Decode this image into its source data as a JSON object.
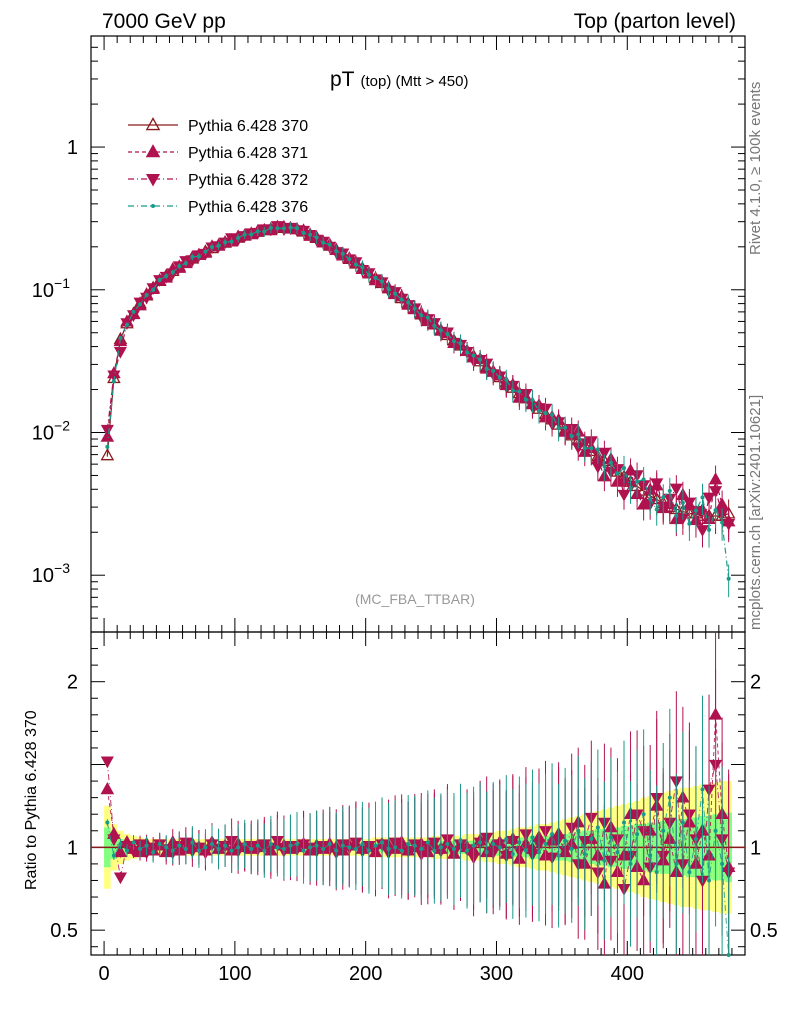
{
  "header": {
    "left": "7000 GeV pp",
    "right": "Top (parton level)"
  },
  "side_labels": {
    "upper": "Rivet 4.1.0, ≥ 100k events",
    "lower": "mcplots.cern.ch [arXiv:2401.10621]"
  },
  "title": {
    "main": "pT",
    "sub": "(top) (Mtt > 450)"
  },
  "watermark": "(MC_FBA_TTBAR)",
  "ratio_ylabel": "Ratio to Pythia 6.428 370",
  "chart_data": {
    "type": "scatter",
    "top_panel": {
      "yscale": "log",
      "ylim": [
        0.0004,
        6
      ],
      "y_ticks": [
        {
          "value": 0.001,
          "base": "10",
          "exp": "−3"
        },
        {
          "value": 0.01,
          "base": "10",
          "exp": "−2"
        },
        {
          "value": 0.1,
          "base": "10",
          "exp": "−1"
        },
        {
          "value": 1,
          "base": "1",
          "exp": ""
        }
      ]
    },
    "ratio_panel": {
      "ylim": [
        0.35,
        2.3
      ],
      "y_ticks": [
        {
          "value": 0.5,
          "label": "0.5"
        },
        {
          "value": 1,
          "label": "1"
        },
        {
          "value": 2,
          "label": "2"
        }
      ]
    },
    "xlim": [
      -10,
      490
    ],
    "x_ticks": [
      {
        "value": 0,
        "label": "0"
      },
      {
        "value": 100,
        "label": "100"
      },
      {
        "value": 200,
        "label": "200"
      },
      {
        "value": 300,
        "label": "300"
      },
      {
        "value": 400,
        "label": "400"
      }
    ],
    "bin_width": 5,
    "x": [
      2.5,
      7.5,
      12.5,
      17.5,
      22.5,
      27.5,
      32.5,
      37.5,
      42.5,
      47.5,
      52.5,
      57.5,
      62.5,
      67.5,
      72.5,
      77.5,
      82.5,
      87.5,
      92.5,
      97.5,
      102.5,
      107.5,
      112.5,
      117.5,
      122.5,
      127.5,
      132.5,
      137.5,
      142.5,
      147.5,
      152.5,
      157.5,
      162.5,
      167.5,
      172.5,
      177.5,
      182.5,
      187.5,
      192.5,
      197.5,
      202.5,
      207.5,
      212.5,
      217.5,
      222.5,
      227.5,
      232.5,
      237.5,
      242.5,
      247.5,
      252.5,
      257.5,
      262.5,
      267.5,
      272.5,
      277.5,
      282.5,
      287.5,
      292.5,
      297.5,
      302.5,
      307.5,
      312.5,
      317.5,
      322.5,
      327.5,
      332.5,
      337.5,
      342.5,
      347.5,
      352.5,
      357.5,
      362.5,
      367.5,
      372.5,
      377.5,
      382.5,
      387.5,
      392.5,
      397.5,
      402.5,
      407.5,
      412.5,
      417.5,
      422.5,
      427.5,
      432.5,
      437.5,
      442.5,
      447.5,
      452.5,
      457.5,
      462.5,
      467.5,
      472.5,
      477.5
    ],
    "reference_values": [
      0.0069,
      0.024,
      0.045,
      0.058,
      0.068,
      0.08,
      0.091,
      0.103,
      0.115,
      0.125,
      0.135,
      0.145,
      0.155,
      0.165,
      0.175,
      0.185,
      0.195,
      0.205,
      0.213,
      0.222,
      0.231,
      0.239,
      0.247,
      0.254,
      0.261,
      0.266,
      0.27,
      0.272,
      0.27,
      0.265,
      0.255,
      0.243,
      0.23,
      0.216,
      0.203,
      0.19,
      0.177,
      0.164,
      0.152,
      0.141,
      0.13,
      0.12,
      0.111,
      0.102,
      0.094,
      0.087,
      0.08,
      0.073,
      0.067,
      0.062,
      0.057,
      0.052,
      0.048,
      0.044,
      0.0405,
      0.0372,
      0.0342,
      0.0314,
      0.0288,
      0.0265,
      0.0243,
      0.0223,
      0.0205,
      0.0188,
      0.0173,
      0.0159,
      0.0146,
      0.0134,
      0.0123,
      0.0113,
      0.0104,
      0.0095,
      0.0088,
      0.0081,
      0.0074,
      0.0068,
      0.0063,
      0.0058,
      0.0053,
      0.0049,
      0.0045,
      0.0042,
      0.0039,
      0.0036,
      0.0034,
      0.0032,
      0.003,
      0.0029,
      0.0028,
      0.0027,
      0.0027,
      0.0026,
      0.0026,
      0.0026,
      0.0026,
      0.0027
    ],
    "reference_band_yellow": [
      [
        0.75,
        1.25
      ],
      [
        0.86,
        1.14
      ],
      [
        0.9,
        1.1
      ],
      [
        0.92,
        1.08
      ],
      [
        0.93,
        1.07
      ],
      [
        0.94,
        1.06
      ],
      [
        0.95,
        1.05
      ],
      [
        0.95,
        1.05
      ],
      [
        0.95,
        1.05
      ],
      [
        0.95,
        1.05
      ],
      [
        0.95,
        1.05
      ],
      [
        0.95,
        1.05
      ],
      [
        0.95,
        1.05
      ],
      [
        0.95,
        1.05
      ],
      [
        0.95,
        1.05
      ],
      [
        0.95,
        1.05
      ],
      [
        0.95,
        1.05
      ],
      [
        0.95,
        1.05
      ],
      [
        0.95,
        1.05
      ],
      [
        0.95,
        1.05
      ],
      [
        0.95,
        1.05
      ],
      [
        0.95,
        1.05
      ],
      [
        0.95,
        1.05
      ],
      [
        0.95,
        1.05
      ],
      [
        0.95,
        1.05
      ],
      [
        0.95,
        1.05
      ],
      [
        0.95,
        1.05
      ],
      [
        0.95,
        1.05
      ],
      [
        0.95,
        1.05
      ],
      [
        0.95,
        1.05
      ],
      [
        0.95,
        1.05
      ],
      [
        0.95,
        1.05
      ],
      [
        0.95,
        1.05
      ],
      [
        0.95,
        1.05
      ],
      [
        0.95,
        1.05
      ],
      [
        0.95,
        1.05
      ],
      [
        0.95,
        1.05
      ],
      [
        0.95,
        1.05
      ],
      [
        0.95,
        1.05
      ],
      [
        0.95,
        1.05
      ],
      [
        0.95,
        1.05
      ],
      [
        0.94,
        1.06
      ],
      [
        0.94,
        1.06
      ],
      [
        0.94,
        1.06
      ],
      [
        0.94,
        1.06
      ],
      [
        0.94,
        1.06
      ],
      [
        0.94,
        1.06
      ],
      [
        0.94,
        1.06
      ],
      [
        0.94,
        1.06
      ],
      [
        0.94,
        1.06
      ],
      [
        0.93,
        1.07
      ],
      [
        0.93,
        1.07
      ],
      [
        0.93,
        1.07
      ],
      [
        0.93,
        1.07
      ],
      [
        0.93,
        1.07
      ],
      [
        0.92,
        1.08
      ],
      [
        0.92,
        1.08
      ],
      [
        0.92,
        1.08
      ],
      [
        0.91,
        1.09
      ],
      [
        0.91,
        1.09
      ],
      [
        0.9,
        1.1
      ],
      [
        0.9,
        1.1
      ],
      [
        0.89,
        1.11
      ],
      [
        0.88,
        1.12
      ],
      [
        0.88,
        1.12
      ],
      [
        0.87,
        1.13
      ],
      [
        0.86,
        1.14
      ],
      [
        0.86,
        1.14
      ],
      [
        0.85,
        1.15
      ],
      [
        0.84,
        1.16
      ],
      [
        0.83,
        1.17
      ],
      [
        0.82,
        1.18
      ],
      [
        0.81,
        1.19
      ],
      [
        0.8,
        1.2
      ],
      [
        0.79,
        1.21
      ],
      [
        0.78,
        1.22
      ],
      [
        0.77,
        1.23
      ],
      [
        0.76,
        1.24
      ],
      [
        0.75,
        1.25
      ],
      [
        0.74,
        1.26
      ],
      [
        0.73,
        1.27
      ],
      [
        0.72,
        1.28
      ],
      [
        0.7,
        1.3
      ],
      [
        0.69,
        1.31
      ],
      [
        0.68,
        1.32
      ],
      [
        0.67,
        1.33
      ],
      [
        0.66,
        1.34
      ],
      [
        0.65,
        1.35
      ],
      [
        0.64,
        1.36
      ],
      [
        0.64,
        1.36
      ],
      [
        0.63,
        1.37
      ],
      [
        0.62,
        1.38
      ],
      [
        0.62,
        1.38
      ],
      [
        0.61,
        1.39
      ],
      [
        0.6,
        1.4
      ],
      [
        0.6,
        1.4
      ]
    ],
    "reference_band_green": [
      [
        0.88,
        1.12
      ],
      [
        0.93,
        1.07
      ],
      [
        0.95,
        1.05
      ],
      [
        0.96,
        1.04
      ],
      [
        0.97,
        1.03
      ],
      [
        0.97,
        1.03
      ],
      [
        0.97,
        1.03
      ],
      [
        0.98,
        1.02
      ],
      [
        0.98,
        1.02
      ],
      [
        0.98,
        1.02
      ],
      [
        0.98,
        1.02
      ],
      [
        0.98,
        1.02
      ],
      [
        0.98,
        1.02
      ],
      [
        0.98,
        1.02
      ],
      [
        0.98,
        1.02
      ],
      [
        0.98,
        1.02
      ],
      [
        0.98,
        1.02
      ],
      [
        0.98,
        1.02
      ],
      [
        0.98,
        1.02
      ],
      [
        0.98,
        1.02
      ],
      [
        0.98,
        1.02
      ],
      [
        0.98,
        1.02
      ],
      [
        0.98,
        1.02
      ],
      [
        0.98,
        1.02
      ],
      [
        0.98,
        1.02
      ],
      [
        0.98,
        1.02
      ],
      [
        0.98,
        1.02
      ],
      [
        0.98,
        1.02
      ],
      [
        0.98,
        1.02
      ],
      [
        0.98,
        1.02
      ],
      [
        0.98,
        1.02
      ],
      [
        0.98,
        1.02
      ],
      [
        0.98,
        1.02
      ],
      [
        0.98,
        1.02
      ],
      [
        0.98,
        1.02
      ],
      [
        0.98,
        1.02
      ],
      [
        0.98,
        1.02
      ],
      [
        0.98,
        1.02
      ],
      [
        0.98,
        1.02
      ],
      [
        0.98,
        1.02
      ],
      [
        0.98,
        1.02
      ],
      [
        0.97,
        1.03
      ],
      [
        0.97,
        1.03
      ],
      [
        0.97,
        1.03
      ],
      [
        0.97,
        1.03
      ],
      [
        0.97,
        1.03
      ],
      [
        0.97,
        1.03
      ],
      [
        0.97,
        1.03
      ],
      [
        0.97,
        1.03
      ],
      [
        0.97,
        1.03
      ],
      [
        0.97,
        1.03
      ],
      [
        0.96,
        1.04
      ],
      [
        0.96,
        1.04
      ],
      [
        0.96,
        1.04
      ],
      [
        0.96,
        1.04
      ],
      [
        0.96,
        1.04
      ],
      [
        0.96,
        1.04
      ],
      [
        0.96,
        1.04
      ],
      [
        0.95,
        1.05
      ],
      [
        0.95,
        1.05
      ],
      [
        0.95,
        1.05
      ],
      [
        0.95,
        1.05
      ],
      [
        0.94,
        1.06
      ],
      [
        0.94,
        1.06
      ],
      [
        0.94,
        1.06
      ],
      [
        0.93,
        1.07
      ],
      [
        0.93,
        1.07
      ],
      [
        0.93,
        1.07
      ],
      [
        0.92,
        1.08
      ],
      [
        0.92,
        1.08
      ],
      [
        0.92,
        1.08
      ],
      [
        0.91,
        1.09
      ],
      [
        0.91,
        1.09
      ],
      [
        0.9,
        1.1
      ],
      [
        0.9,
        1.1
      ],
      [
        0.89,
        1.11
      ],
      [
        0.89,
        1.11
      ],
      [
        0.88,
        1.12
      ],
      [
        0.88,
        1.12
      ],
      [
        0.87,
        1.13
      ],
      [
        0.87,
        1.13
      ],
      [
        0.86,
        1.14
      ],
      [
        0.86,
        1.14
      ],
      [
        0.85,
        1.15
      ],
      [
        0.85,
        1.15
      ],
      [
        0.84,
        1.16
      ],
      [
        0.84,
        1.16
      ],
      [
        0.83,
        1.17
      ],
      [
        0.83,
        1.17
      ],
      [
        0.82,
        1.18
      ],
      [
        0.82,
        1.18
      ],
      [
        0.81,
        1.19
      ],
      [
        0.81,
        1.19
      ],
      [
        0.8,
        1.2
      ],
      [
        0.8,
        1.2
      ],
      [
        0.79,
        1.21
      ]
    ],
    "series": [
      {
        "name": "Pythia 6.428 370",
        "color": "#8b1a1a",
        "marker": "triangle-up-open",
        "line": "solid",
        "ratio": [
          1,
          1,
          1,
          1,
          1,
          1,
          1,
          1,
          1,
          1,
          1,
          1,
          1,
          1,
          1,
          1,
          1,
          1,
          1,
          1,
          1,
          1,
          1,
          1,
          1,
          1,
          1,
          1,
          1,
          1,
          1,
          1,
          1,
          1,
          1,
          1,
          1,
          1,
          1,
          1,
          1,
          1,
          1,
          1,
          1,
          1,
          1,
          1,
          1,
          1,
          1,
          1,
          1,
          1,
          1,
          1,
          1,
          1,
          1,
          1,
          1,
          1,
          1,
          1,
          1,
          1,
          1,
          1,
          1,
          1,
          1,
          1,
          1,
          1,
          1,
          1,
          1,
          1,
          1,
          1,
          1,
          1,
          1,
          1,
          1,
          1,
          1,
          1,
          1,
          1,
          1,
          1,
          1,
          1,
          1,
          1
        ]
      },
      {
        "name": "Pythia 6.428 371",
        "color": "#b0124f",
        "marker": "triangle-up-filled",
        "line": "dashed",
        "ratio": [
          1.35,
          1.08,
          0.97,
          1.03,
          0.99,
          0.97,
          1.02,
          0.98,
          1.01,
          0.97,
          1.03,
          0.98,
          0.99,
          1.02,
          1,
          0.98,
          1.03,
          0.99,
          1.01,
          0.98,
          1.02,
          1,
          0.99,
          1.01,
          1,
          0.98,
          1.02,
          1.01,
          0.99,
          1,
          1.02,
          0.98,
          1.01,
          0.99,
          1.02,
          1,
          0.98,
          1.01,
          1.02,
          0.99,
          1,
          0.97,
          1.02,
          1.01,
          0.99,
          1.03,
          0.98,
          1,
          1.02,
          0.97,
          1.01,
          0.99,
          1.03,
          0.96,
          1.02,
          1,
          0.98,
          1.04,
          0.97,
          1.01,
          1.03,
          0.96,
          1.05,
          0.93,
          1.02,
          0.99,
          1.06,
          0.95,
          1.04,
          1.08,
          0.97,
          1.02,
          1.15,
          0.9,
          1.05,
          0.95,
          0.78,
          1.12,
          0.85,
          0.95,
          1.2,
          0.88,
          0.8,
          1.1,
          1.25,
          0.92,
          1.05,
          0.85,
          1.3,
          1.15,
          0.9,
          1.1,
          0.95,
          1.8,
          1.2,
          0.88
        ]
      },
      {
        "name": "Pythia 6.428 372",
        "color": "#b0124f",
        "marker": "triangle-down-filled",
        "line": "dashdot",
        "ratio": [
          1.52,
          1.05,
          0.82,
          1.01,
          0.98,
          1.02,
          0.97,
          1,
          1.02,
          0.99,
          0.97,
          1.01,
          1.03,
          0.98,
          1,
          0.97,
          1.02,
          0.99,
          1.01,
          1.04,
          0.98,
          1,
          1.01,
          0.99,
          1.02,
          1,
          1.04,
          0.98,
          1.01,
          0.99,
          1.02,
          1,
          0.98,
          1.01,
          0.99,
          0.97,
          1.02,
          1,
          1.03,
          0.98,
          1.01,
          0.99,
          1.02,
          0.97,
          1.03,
          1,
          0.98,
          1.02,
          0.96,
          1.01,
          1.03,
          0.98,
          1.05,
          0.97,
          1.02,
          0.99,
          0.94,
          1.03,
          1.06,
          0.97,
          1.02,
          0.95,
          1.04,
          0.98,
          1.08,
          0.96,
          1.02,
          1.1,
          0.94,
          1.05,
          0.98,
          1.12,
          0.9,
          1.04,
          1.18,
          0.85,
          1.15,
          0.92,
          1.05,
          0.75,
          0.95,
          1.2,
          1.1,
          0.88,
          1.3,
          0.95,
          1.15,
          1.4,
          0.9,
          1.2,
          1.05,
          0.8,
          1.35,
          1.5,
          1.05,
          0.85
        ]
      },
      {
        "name": "Pythia 6.428 376",
        "color": "#1a9a8a",
        "marker": "dot",
        "line": "dashdot",
        "ratio": [
          1.15,
          0.95,
          1.02,
          0.98,
          1.03,
          0.99,
          1.01,
          0.97,
          1.02,
          1,
          0.98,
          1.01,
          0.99,
          1.03,
          0.98,
          1,
          1.02,
          0.99,
          1.01,
          0.98,
          1,
          1.02,
          0.99,
          1.01,
          0.98,
          1.02,
          1,
          0.99,
          1.01,
          1.02,
          0.98,
          1,
          1.01,
          0.99,
          1.02,
          0.98,
          1.01,
          1,
          0.99,
          1.02,
          0.98,
          1.01,
          1.03,
          0.99,
          1,
          0.98,
          1.02,
          1.01,
          0.99,
          1.03,
          0.98,
          1,
          1.02,
          0.99,
          1.04,
          0.98,
          1.01,
          1.03,
          0.97,
          1.02,
          1,
          1.05,
          0.96,
          1.03,
          0.98,
          1.06,
          0.97,
          1.02,
          1.08,
          0.95,
          1.04,
          0.99,
          1.1,
          0.96,
          1.05,
          1.12,
          0.92,
          1.06,
          0.97,
          1.15,
          0.9,
          1.08,
          1.2,
          0.95,
          0.85,
          1.1,
          1.3,
          0.9,
          1.15,
          0.85,
          1.05,
          1.35,
          0.8,
          1.1,
          0.9,
          0.35
        ]
      }
    ]
  }
}
